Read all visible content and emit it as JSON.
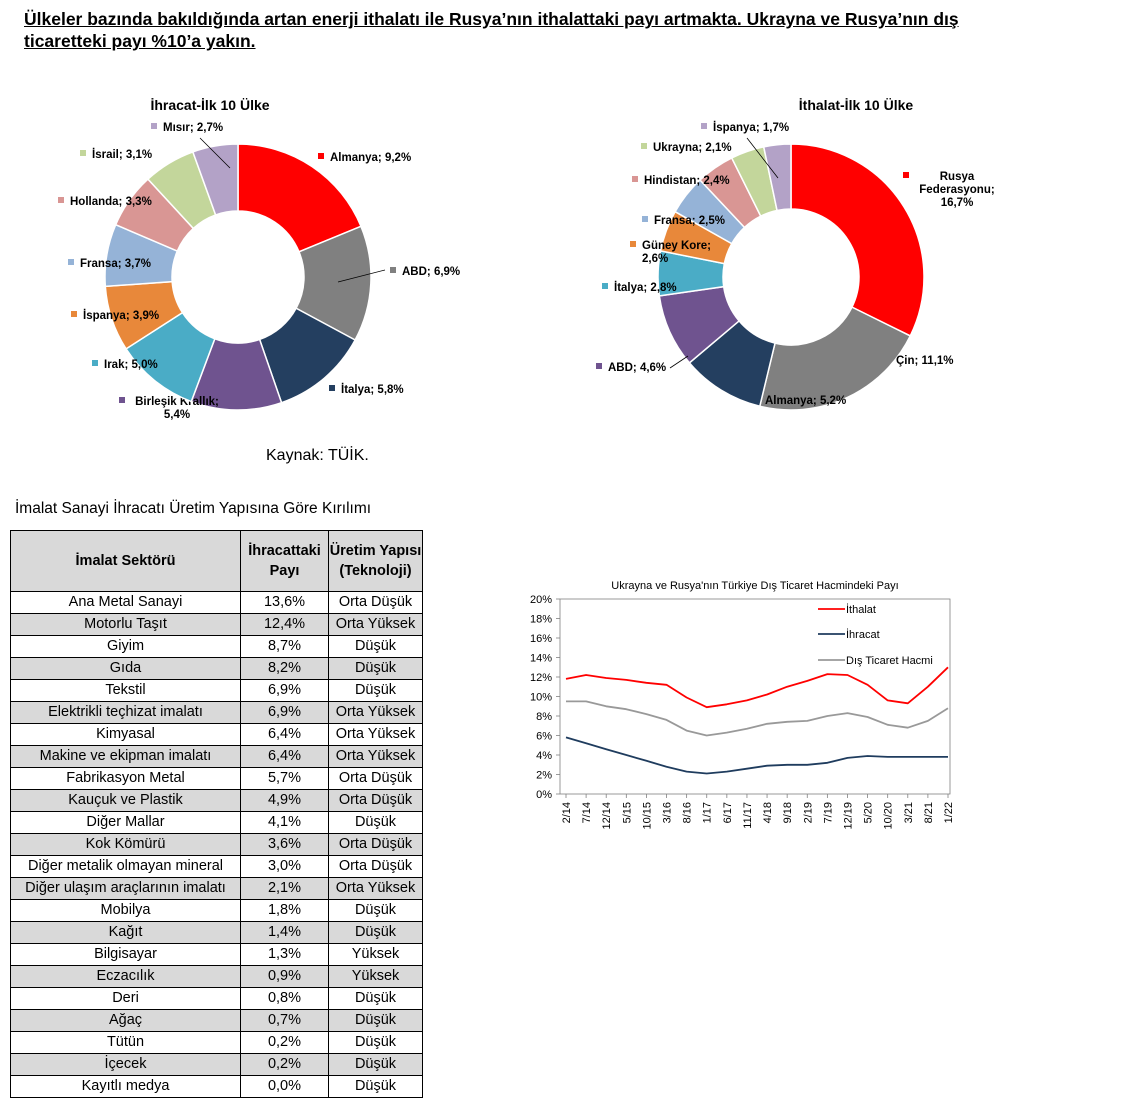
{
  "headline": "Ülkeler bazında bakıldığında artan enerji ithalatı ile Rusya’nın ithalattaki payı artmakta. Ukrayna ve Rusya’nın dış ticaretteki payı %10’a yakın.",
  "source": "Kaynak: TÜİK.",
  "table_caption": "İmalat Sanayi İhracatı Üretim Yapısına Göre Kırılımı",
  "table": {
    "headers": [
      "İmalat Sektörü",
      "İhracattaki Payı",
      "Üretim Yapısı (Teknoloji)"
    ],
    "rows": [
      [
        "Ana Metal Sanayi",
        "13,6%",
        "Orta Düşük"
      ],
      [
        "Motorlu Taşıt",
        "12,4%",
        "Orta Yüksek"
      ],
      [
        "Giyim",
        "8,7%",
        "Düşük"
      ],
      [
        "Gıda",
        "8,2%",
        "Düşük"
      ],
      [
        "Tekstil",
        "6,9%",
        "Düşük"
      ],
      [
        "Elektrikli teçhizat imalatı",
        "6,9%",
        "Orta Yüksek"
      ],
      [
        "Kimyasal",
        "6,4%",
        "Orta Yüksek"
      ],
      [
        "Makine ve ekipman imalatı",
        "6,4%",
        "Orta Yüksek"
      ],
      [
        "Fabrikasyon Metal",
        "5,7%",
        "Orta Düşük"
      ],
      [
        "Kauçuk ve Plastik",
        "4,9%",
        "Orta Düşük"
      ],
      [
        "Diğer Mallar",
        "4,1%",
        "Düşük"
      ],
      [
        "Kok Kömürü",
        "3,6%",
        "Orta Düşük"
      ],
      [
        "Diğer metalik olmayan mineral",
        "3,0%",
        "Orta Düşük"
      ],
      [
        "Diğer ulaşım araçlarının imalatı",
        "2,1%",
        "Orta Yüksek"
      ],
      [
        "Mobilya",
        "1,8%",
        "Düşük"
      ],
      [
        "Kağıt",
        "1,4%",
        "Düşük"
      ],
      [
        "Bilgisayar",
        "1,3%",
        "Yüksek"
      ],
      [
        "Eczacılık",
        "0,9%",
        "Yüksek"
      ],
      [
        "Deri",
        "0,8%",
        "Düşük"
      ],
      [
        "Ağaç",
        "0,7%",
        "Düşük"
      ],
      [
        "Tütün",
        "0,2%",
        "Düşük"
      ],
      [
        "İçecek",
        "0,2%",
        "Düşük"
      ],
      [
        "Kayıtlı medya",
        "0,0%",
        "Düşük"
      ]
    ]
  },
  "chart_data": [
    {
      "type": "pie",
      "title": "İhracat-İlk 10 Ülke",
      "donut": true,
      "slices": [
        {
          "label": "Almanya; 9,2%",
          "value": 9.2,
          "color": "#ff0000"
        },
        {
          "label": "ABD; 6,9%",
          "value": 6.9,
          "color": "#808080"
        },
        {
          "label": "İtalya; 5,8%",
          "value": 5.8,
          "color": "#243f60"
        },
        {
          "label": "Birleşik Krallık; 5,4%",
          "value": 5.4,
          "color": "#6f538f"
        },
        {
          "label": "Irak; 5,0%",
          "value": 5.0,
          "color": "#4aacc6"
        },
        {
          "label": "İspanya; 3,9%",
          "value": 3.9,
          "color": "#e8883a"
        },
        {
          "label": "Fransa; 3,7%",
          "value": 3.7,
          "color": "#95b3d7"
        },
        {
          "label": "Hollanda; 3,3%",
          "value": 3.3,
          "color": "#d99694"
        },
        {
          "label": "İsrail; 3,1%",
          "value": 3.1,
          "color": "#c3d69b"
        },
        {
          "label": "Mısır; 2,7%",
          "value": 2.7,
          "color": "#b3a2c7"
        }
      ]
    },
    {
      "type": "pie",
      "title": "İthalat-İlk 10 Ülke",
      "donut": true,
      "slices": [
        {
          "label": "Rusya Federasyonu; 16,7%",
          "value": 16.7,
          "color": "#ff0000"
        },
        {
          "label": "Çin; 11,1%",
          "value": 11.1,
          "color": "#808080"
        },
        {
          "label": "Almanya; 5,2%",
          "value": 5.2,
          "color": "#243f60"
        },
        {
          "label": "ABD; 4,6%",
          "value": 4.6,
          "color": "#6f538f"
        },
        {
          "label": "İtalya; 2,8%",
          "value": 2.8,
          "color": "#4aacc6"
        },
        {
          "label": "Güney Kore; 2,6%",
          "value": 2.6,
          "color": "#e8883a"
        },
        {
          "label": "Fransa; 2,5%",
          "value": 2.5,
          "color": "#95b3d7"
        },
        {
          "label": "Hindistan; 2,4%",
          "value": 2.4,
          "color": "#d99694"
        },
        {
          "label": "Ukrayna; 2,1%",
          "value": 2.1,
          "color": "#c3d69b"
        },
        {
          "label": "İspanya; 1,7%",
          "value": 1.7,
          "color": "#b3a2c7"
        }
      ]
    },
    {
      "type": "line",
      "title": "Ukrayna ve Rusya'nın Türkiye Dış Ticaret Hacmindeki Payı",
      "x_tick_labels": [
        "2/14",
        "7/14",
        "12/14",
        "5/15",
        "10/15",
        "3/16",
        "8/16",
        "1/17",
        "6/17",
        "11/17",
        "4/18",
        "9/18",
        "2/19",
        "7/19",
        "12/19",
        "5/20",
        "10/20",
        "3/21",
        "8/21",
        "1/22"
      ],
      "y_tick_labels": [
        "0%",
        "2%",
        "4%",
        "6%",
        "8%",
        "10%",
        "12%",
        "14%",
        "16%",
        "18%",
        "20%"
      ],
      "ylim": [
        0,
        20
      ],
      "legend_placement": "top-right",
      "series": [
        {
          "name": "İthalat",
          "color": "#ff0000",
          "values": [
            11.8,
            12.2,
            11.9,
            11.7,
            11.4,
            11.2,
            9.9,
            8.9,
            9.2,
            9.6,
            10.2,
            11.0,
            11.6,
            12.3,
            12.2,
            11.2,
            9.6,
            9.3,
            11.0,
            13.0
          ]
        },
        {
          "name": "İhracat",
          "color": "#1f3c5e",
          "values": [
            5.8,
            5.2,
            4.6,
            4.0,
            3.4,
            2.8,
            2.3,
            2.1,
            2.3,
            2.6,
            2.9,
            3.0,
            3.0,
            3.2,
            3.7,
            3.9,
            3.8,
            3.8,
            3.8,
            3.8
          ]
        },
        {
          "name": "Dış Ticaret Hacmi",
          "color": "#999999",
          "values": [
            9.5,
            9.5,
            9.0,
            8.7,
            8.2,
            7.6,
            6.5,
            6.0,
            6.3,
            6.7,
            7.2,
            7.4,
            7.5,
            8.0,
            8.3,
            7.9,
            7.1,
            6.8,
            7.5,
            8.8
          ]
        }
      ]
    }
  ]
}
